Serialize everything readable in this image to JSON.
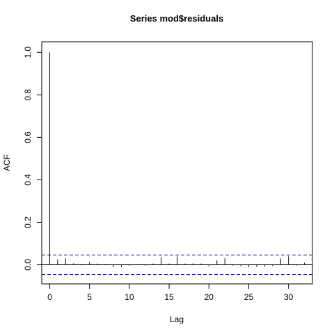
{
  "chart_data": {
    "type": "bar",
    "title": "Series  mod$residuals",
    "xlabel": "Lag",
    "ylabel": "ACF",
    "xlim": [
      -1.0,
      33.0
    ],
    "ylim": [
      -0.09,
      1.05
    ],
    "x_ticks": [
      0,
      5,
      10,
      15,
      20,
      25,
      30
    ],
    "y_ticks": [
      0.0,
      0.2,
      0.4,
      0.6,
      0.8,
      1.0
    ],
    "y_tick_labels": [
      "0.0",
      "0.2",
      "0.4",
      "0.6",
      "0.8",
      "1.0"
    ],
    "lags": [
      0,
      1,
      2,
      3,
      4,
      5,
      6,
      7,
      8,
      9,
      10,
      11,
      12,
      13,
      14,
      15,
      16,
      17,
      18,
      19,
      20,
      21,
      22,
      23,
      24,
      25,
      26,
      27,
      28,
      29,
      30,
      31,
      32
    ],
    "acf": [
      1.0,
      0.025,
      0.03,
      0.007,
      0.004,
      0.013,
      0.006,
      0.004,
      -0.01,
      -0.01,
      -0.004,
      -0.002,
      -0.004,
      0.006,
      0.035,
      0.006,
      0.04,
      0.006,
      0.007,
      0.006,
      -0.007,
      0.02,
      0.03,
      -0.004,
      -0.006,
      -0.01,
      -0.01,
      -0.008,
      -0.006,
      0.03,
      0.04,
      -0.004,
      0.01
    ],
    "ci_upper": 0.046,
    "ci_lower": -0.046,
    "ci_color": "#00008B",
    "grid": false,
    "legend": "none"
  }
}
